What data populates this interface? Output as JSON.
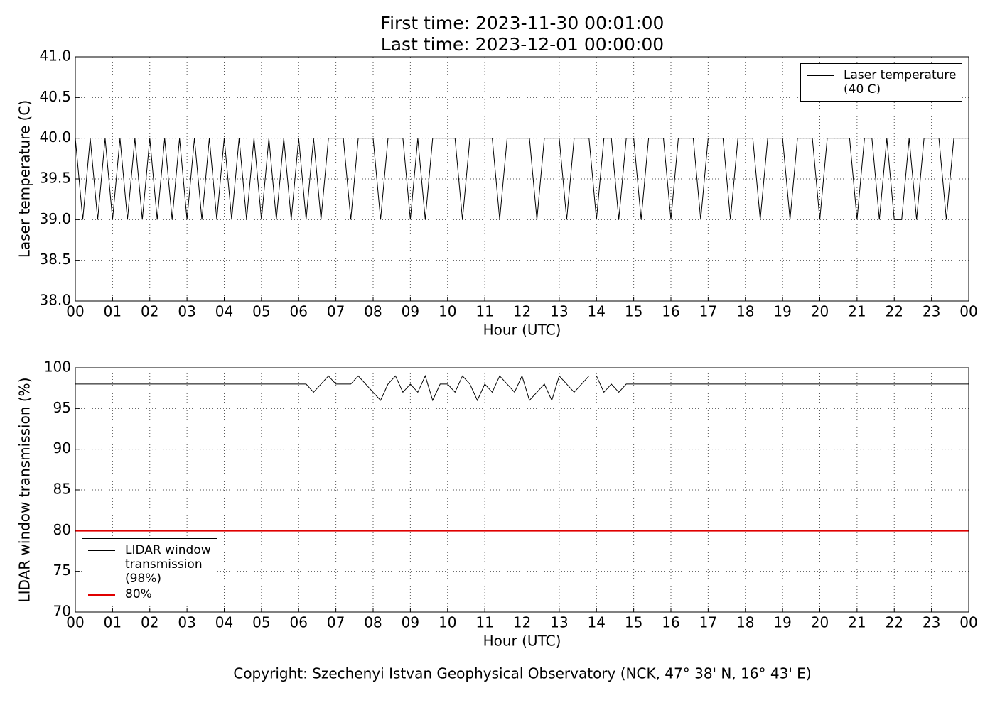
{
  "title": "First time: 2023-11-30 00:01:00",
  "subtitle": "Last time: 2023-12-01 00:00:00",
  "footer": "Copyright: Szechenyi Istvan Geophysical Observatory (NCK, 47° 38' N, 16° 43' E)",
  "chart_data": [
    {
      "type": "line",
      "x_label": "Hour (UTC)",
      "y_label": "Laser temperature (C)",
      "xlim": [
        0,
        24
      ],
      "ylim": [
        38,
        41
      ],
      "grid": true,
      "legend_loc": "upper right",
      "xticks": [
        {
          "value": 0,
          "label": "00"
        },
        {
          "value": 1,
          "label": "01"
        },
        {
          "value": 2,
          "label": "02"
        },
        {
          "value": 3,
          "label": "03"
        },
        {
          "value": 4,
          "label": "04"
        },
        {
          "value": 5,
          "label": "05"
        },
        {
          "value": 6,
          "label": "06"
        },
        {
          "value": 7,
          "label": "07"
        },
        {
          "value": 8,
          "label": "08"
        },
        {
          "value": 9,
          "label": "09"
        },
        {
          "value": 10,
          "label": "10"
        },
        {
          "value": 11,
          "label": "11"
        },
        {
          "value": 12,
          "label": "12"
        },
        {
          "value": 13,
          "label": "13"
        },
        {
          "value": 14,
          "label": "14"
        },
        {
          "value": 15,
          "label": "15"
        },
        {
          "value": 16,
          "label": "16"
        },
        {
          "value": 17,
          "label": "17"
        },
        {
          "value": 18,
          "label": "18"
        },
        {
          "value": 19,
          "label": "19"
        },
        {
          "value": 20,
          "label": "20"
        },
        {
          "value": 21,
          "label": "21"
        },
        {
          "value": 22,
          "label": "22"
        },
        {
          "value": 23,
          "label": "23"
        },
        {
          "value": 24,
          "label": "00"
        }
      ],
      "yticks": [
        {
          "value": 38,
          "label": "38.0"
        },
        38.5,
        {
          "value": 39,
          "label": "39.0"
        },
        39.5,
        {
          "value": 40,
          "label": "40.0"
        },
        40.5,
        {
          "value": 41,
          "label": "41.0"
        }
      ],
      "x": [
        0,
        0.2,
        0.4,
        0.6,
        0.8,
        1,
        1.2,
        1.4,
        1.6,
        1.8,
        2,
        2.2,
        2.4,
        2.6,
        2.8,
        3,
        3.2,
        3.4,
        3.6,
        3.8,
        4,
        4.2,
        4.4,
        4.6,
        4.8,
        5,
        5.2,
        5.4,
        5.6,
        5.8,
        6,
        6.2,
        6.4,
        6.6,
        6.8,
        7,
        7.2,
        7.4,
        7.6,
        7.8,
        8,
        8.2,
        8.4,
        8.6,
        8.8,
        9,
        9.2,
        9.4,
        9.6,
        9.8,
        10,
        10.2,
        10.4,
        10.6,
        10.8,
        11,
        11.2,
        11.4,
        11.6,
        11.8,
        12,
        12.2,
        12.4,
        12.6,
        12.8,
        13,
        13.2,
        13.4,
        13.6,
        13.8,
        14,
        14.2,
        14.4,
        14.6,
        14.8,
        15,
        15.2,
        15.4,
        15.6,
        15.8,
        16,
        16.2,
        16.4,
        16.6,
        16.8,
        17,
        17.2,
        17.4,
        17.6,
        17.8,
        18,
        18.2,
        18.4,
        18.6,
        18.8,
        19,
        19.2,
        19.4,
        19.6,
        19.8,
        20,
        20.2,
        20.4,
        20.6,
        20.8,
        21,
        21.2,
        21.4,
        21.6,
        21.8,
        22,
        22.2,
        22.4,
        22.6,
        22.8,
        23,
        23.2,
        23.4,
        23.6,
        23.8,
        24
      ],
      "series": [
        {
          "name": "Laser temperature\n(40 C)",
          "color": "#000000",
          "values": [
            40,
            39,
            40,
            39,
            40,
            39,
            40,
            39,
            40,
            39,
            40,
            39,
            40,
            39,
            40,
            39,
            40,
            39,
            40,
            39,
            40,
            39,
            40,
            39,
            40,
            39,
            40,
            39,
            40,
            39,
            40,
            39,
            40,
            39,
            40,
            40,
            40,
            39,
            40,
            40,
            40,
            39,
            40,
            40,
            40,
            39,
            40,
            39,
            40,
            40,
            40,
            40,
            39,
            40,
            40,
            40,
            40,
            39,
            40,
            40,
            40,
            40,
            39,
            40,
            40,
            40,
            39,
            40,
            40,
            40,
            39,
            40,
            40,
            39,
            40,
            40,
            39,
            40,
            40,
            40,
            39,
            40,
            40,
            40,
            39,
            40,
            40,
            40,
            39,
            40,
            40,
            40,
            39,
            40,
            40,
            40,
            39,
            40,
            40,
            40,
            39,
            40,
            40,
            40,
            40,
            39,
            40,
            40,
            39,
            40,
            39,
            39,
            40,
            39,
            40,
            40,
            40,
            39,
            40,
            40,
            40
          ]
        }
      ]
    },
    {
      "type": "line",
      "x_label": "Hour (UTC)",
      "y_label": "LIDAR window transmission (%)",
      "xlim": [
        0,
        24
      ],
      "ylim": [
        70,
        100
      ],
      "grid": true,
      "legend_loc": "lower left",
      "xticks": [
        {
          "value": 0,
          "label": "00"
        },
        {
          "value": 1,
          "label": "01"
        },
        {
          "value": 2,
          "label": "02"
        },
        {
          "value": 3,
          "label": "03"
        },
        {
          "value": 4,
          "label": "04"
        },
        {
          "value": 5,
          "label": "05"
        },
        {
          "value": 6,
          "label": "06"
        },
        {
          "value": 7,
          "label": "07"
        },
        {
          "value": 8,
          "label": "08"
        },
        {
          "value": 9,
          "label": "09"
        },
        {
          "value": 10,
          "label": "10"
        },
        {
          "value": 11,
          "label": "11"
        },
        {
          "value": 12,
          "label": "12"
        },
        {
          "value": 13,
          "label": "13"
        },
        {
          "value": 14,
          "label": "14"
        },
        {
          "value": 15,
          "label": "15"
        },
        {
          "value": 16,
          "label": "16"
        },
        {
          "value": 17,
          "label": "17"
        },
        {
          "value": 18,
          "label": "18"
        },
        {
          "value": 19,
          "label": "19"
        },
        {
          "value": 20,
          "label": "20"
        },
        {
          "value": 21,
          "label": "21"
        },
        {
          "value": 22,
          "label": "22"
        },
        {
          "value": 23,
          "label": "23"
        },
        {
          "value": 24,
          "label": "00"
        }
      ],
      "yticks": [
        70,
        75,
        80,
        85,
        90,
        95,
        100
      ],
      "x": [
        0,
        0.2,
        0.4,
        0.6,
        0.8,
        1,
        1.2,
        1.4,
        1.6,
        1.8,
        2,
        2.2,
        2.4,
        2.6,
        2.8,
        3,
        3.2,
        3.4,
        3.6,
        3.8,
        4,
        4.2,
        4.4,
        4.6,
        4.8,
        5,
        5.2,
        5.4,
        5.6,
        5.8,
        6,
        6.2,
        6.4,
        6.6,
        6.8,
        7,
        7.2,
        7.4,
        7.6,
        7.8,
        8,
        8.2,
        8.4,
        8.6,
        8.8,
        9,
        9.2,
        9.4,
        9.6,
        9.8,
        10,
        10.2,
        10.4,
        10.6,
        10.8,
        11,
        11.2,
        11.4,
        11.6,
        11.8,
        12,
        12.2,
        12.4,
        12.6,
        12.8,
        13,
        13.2,
        13.4,
        13.6,
        13.8,
        14,
        14.2,
        14.4,
        14.6,
        14.8,
        15,
        15.2,
        15.4,
        15.6,
        15.8,
        16,
        16.2,
        16.4,
        16.6,
        16.8,
        17,
        17.2,
        17.4,
        17.6,
        17.8,
        18,
        18.2,
        18.4,
        18.6,
        18.8,
        19,
        19.2,
        19.4,
        19.6,
        19.8,
        20,
        20.2,
        20.4,
        20.6,
        20.8,
        21,
        21.2,
        21.4,
        21.6,
        21.8,
        22,
        22.2,
        22.4,
        22.6,
        22.8,
        23,
        23.2,
        23.4,
        23.6,
        23.8,
        24
      ],
      "series": [
        {
          "name": "LIDAR window\ntransmission\n(98%)",
          "color": "#000000",
          "values": [
            98,
            98,
            98,
            98,
            98,
            98,
            98,
            98,
            98,
            98,
            98,
            98,
            98,
            98,
            98,
            98,
            98,
            98,
            98,
            98,
            98,
            98,
            98,
            98,
            98,
            98,
            98,
            98,
            98,
            98,
            98,
            98,
            97,
            98,
            99,
            98,
            98,
            98,
            99,
            98,
            97,
            96,
            98,
            99,
            97,
            98,
            97,
            99,
            96,
            98,
            98,
            97,
            99,
            98,
            96,
            98,
            97,
            99,
            98,
            97,
            99,
            96,
            97,
            98,
            96,
            99,
            98,
            97,
            98,
            99,
            99,
            97,
            98,
            97,
            98,
            98,
            98,
            98,
            98,
            98,
            98,
            98,
            98,
            98,
            98,
            98,
            98,
            98,
            98,
            98,
            98,
            98,
            98,
            98,
            98,
            98,
            98,
            98,
            98,
            98,
            98,
            98,
            98,
            98,
            98,
            98,
            98,
            98,
            98,
            98,
            98,
            98,
            98,
            98,
            98,
            98,
            98,
            98,
            98,
            98,
            98
          ]
        },
        {
          "name": "80%",
          "color": "#e00000",
          "x": [
            0,
            24
          ],
          "values": [
            80,
            80
          ]
        }
      ]
    }
  ]
}
